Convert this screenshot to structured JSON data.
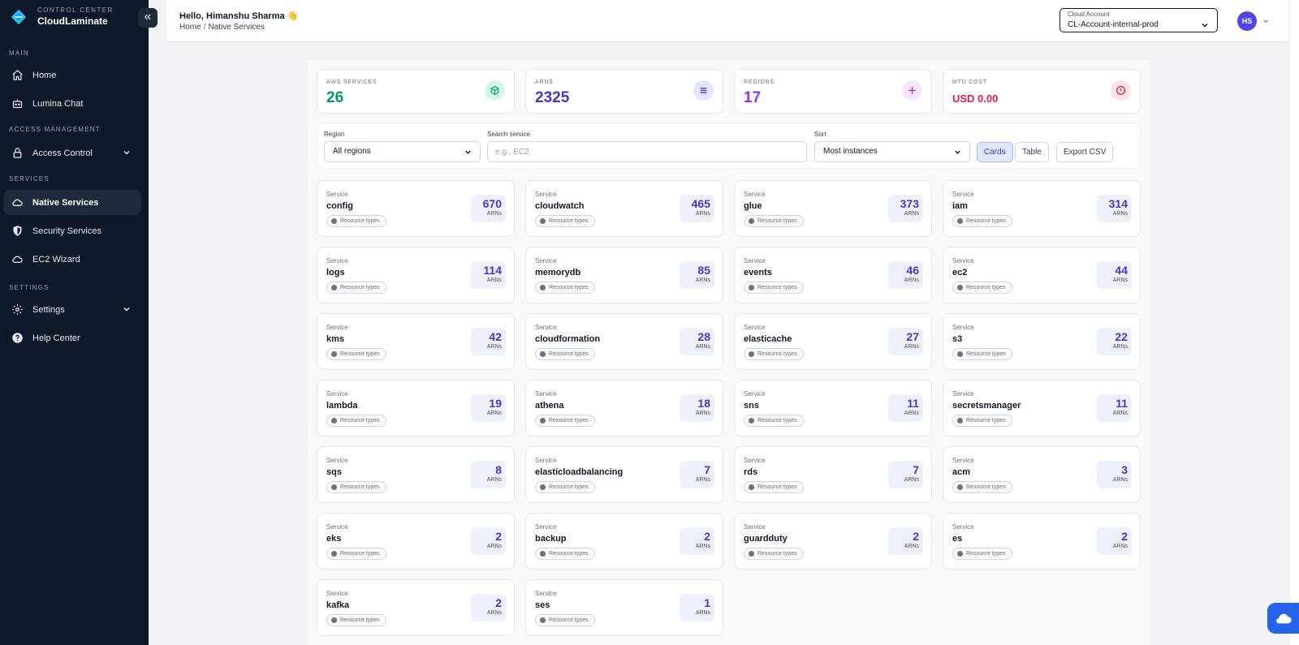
{
  "brand": {
    "subtitle": "CONTROL CENTER",
    "name": "CloudLaminate"
  },
  "sidebar": {
    "sections": {
      "main": "MAIN",
      "access": "ACCESS MANAGEMENT",
      "services": "SERVICES",
      "settings": "SETTINGS"
    },
    "items": {
      "home": "Home",
      "lumina": "Lumina Chat",
      "access_control": "Access Control",
      "native": "Native Services",
      "security": "Security Services",
      "ec2": "EC2 Wizard",
      "settings": "Settings",
      "help": "Help Center"
    }
  },
  "header": {
    "greeting": "Hello, Himanshu Sharma 👋",
    "breadcrumb": {
      "home": "Home",
      "separator": "/",
      "current": "Native Services"
    },
    "account": {
      "label": "Cloud Account",
      "value": "CL-Account-internal-prod"
    },
    "avatar_initials": "HS"
  },
  "stats": {
    "aws": {
      "label": "AWS SERVICES",
      "value": "26",
      "color": "#059669"
    },
    "arns": {
      "label": "ARNS",
      "value": "2325",
      "color": "#4338ca"
    },
    "regions": {
      "label": "REGIONS",
      "value": "17",
      "color": "#9333ea"
    },
    "cost": {
      "label": "MTD COST",
      "value": "USD 0.00",
      "color": "#e11d48"
    }
  },
  "filters": {
    "region_label": "Region",
    "region_value": "All regions",
    "search_label": "Search service",
    "search_placeholder": "e.g., EC2",
    "sort_label": "Sort",
    "sort_value": "Most instances",
    "cards_btn": "Cards",
    "table_btn": "Table",
    "export_btn": "Export CSV"
  },
  "card_text": {
    "label": "Service",
    "chip": "Resource types",
    "unit": "ARNs"
  },
  "services": [
    {
      "name": "config",
      "arns": "670"
    },
    {
      "name": "cloudwatch",
      "arns": "465"
    },
    {
      "name": "glue",
      "arns": "373"
    },
    {
      "name": "iam",
      "arns": "314"
    },
    {
      "name": "logs",
      "arns": "114"
    },
    {
      "name": "memorydb",
      "arns": "85"
    },
    {
      "name": "events",
      "arns": "46"
    },
    {
      "name": "ec2",
      "arns": "44"
    },
    {
      "name": "kms",
      "arns": "42"
    },
    {
      "name": "cloudformation",
      "arns": "28"
    },
    {
      "name": "elasticache",
      "arns": "27"
    },
    {
      "name": "s3",
      "arns": "22"
    },
    {
      "name": "lambda",
      "arns": "19"
    },
    {
      "name": "athena",
      "arns": "18"
    },
    {
      "name": "sns",
      "arns": "11"
    },
    {
      "name": "secretsmanager",
      "arns": "11"
    },
    {
      "name": "sqs",
      "arns": "8"
    },
    {
      "name": "elasticloadbalancing",
      "arns": "7"
    },
    {
      "name": "rds",
      "arns": "7"
    },
    {
      "name": "acm",
      "arns": "3"
    },
    {
      "name": "eks",
      "arns": "2"
    },
    {
      "name": "backup",
      "arns": "2"
    },
    {
      "name": "guardduty",
      "arns": "2"
    },
    {
      "name": "es",
      "arns": "2"
    },
    {
      "name": "kafka",
      "arns": "2"
    },
    {
      "name": "ses",
      "arns": "1"
    }
  ],
  "icons": {
    "brand": "brand-logo-icon",
    "home": "home-icon",
    "lumina": "bot-icon",
    "access": "lock-icon",
    "native": "cloud-icon",
    "security": "shield-icon",
    "ec2": "cloud-icon",
    "settings": "gear-icon",
    "help": "help-icon",
    "aws": "box-icon",
    "arns": "list-icon",
    "regions": "plus-icon",
    "cost": "alert-circle-icon",
    "chat": "chat-cloud-icon"
  },
  "colors": {
    "sidebar_bg": "#0f172a",
    "accent": "#4338ca",
    "fab": "#2563eb"
  }
}
